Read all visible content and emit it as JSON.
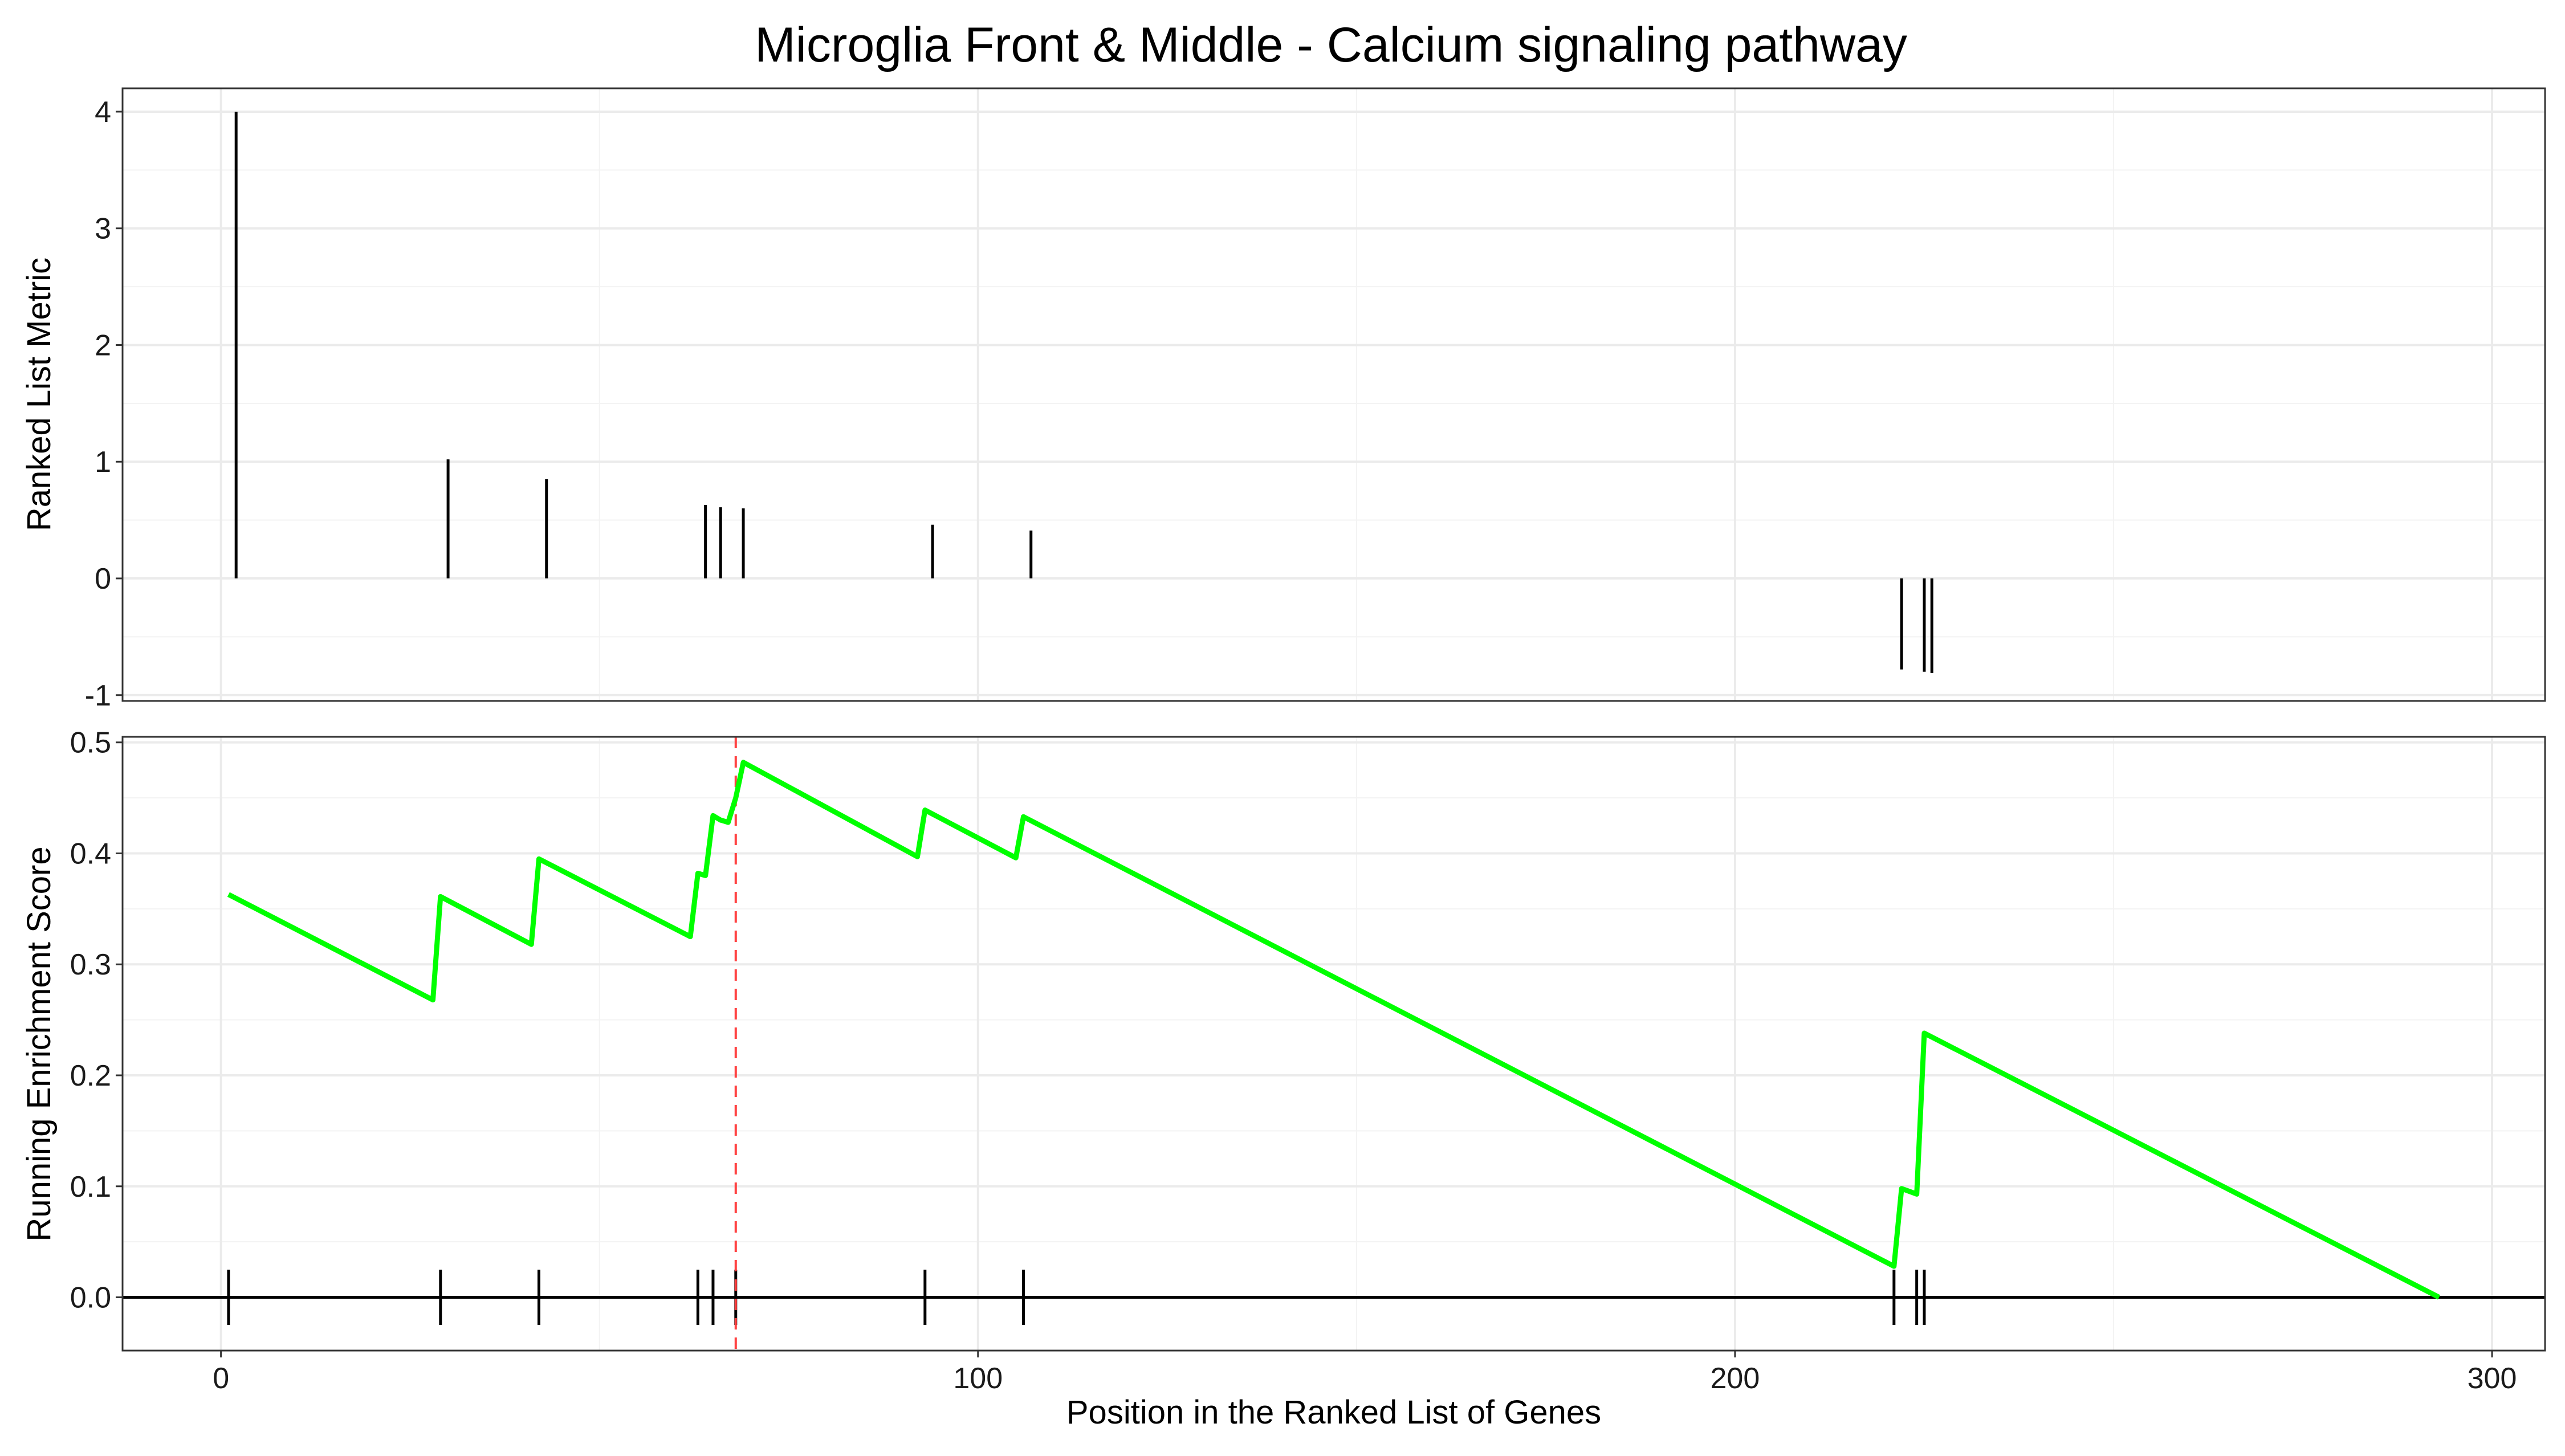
{
  "title": "Microglia Front & Middle - Calcium signaling pathway",
  "colors": {
    "running_score": "#00ff00",
    "peak_marker": "#ff4040",
    "bars": "#000000",
    "grid": "#ebebeb",
    "border": "#333333"
  },
  "chart_data": [
    {
      "type": "bar",
      "panel": "top",
      "ylabel": "Ranked List Metric",
      "xlim": [
        -13,
        307
      ],
      "ylim": [
        -1.05,
        4.2
      ],
      "yticks": [
        -1,
        0,
        1,
        2,
        3,
        4
      ],
      "ytick_labels": [
        "-1",
        "0",
        "1",
        "2",
        "3",
        "4"
      ],
      "x_minor_breaks": [
        50,
        150,
        250
      ],
      "y_minor_breaks": [
        -0.5,
        0.5,
        1.5,
        2.5,
        3.5
      ],
      "x": [
        2,
        30,
        43,
        64,
        66,
        69,
        94,
        107,
        222,
        225,
        226
      ],
      "values": [
        4.0,
        1.02,
        0.85,
        0.63,
        0.61,
        0.6,
        0.46,
        0.41,
        -0.78,
        -0.8,
        -0.81
      ],
      "grid": true
    },
    {
      "type": "line",
      "panel": "bottom",
      "xlabel": "Position in the Ranked List of Genes",
      "ylabel": "Running Enrichment Score",
      "xlim": [
        -13,
        307
      ],
      "ylim": [
        -0.048,
        0.505
      ],
      "xticks": [
        0,
        100,
        200,
        300
      ],
      "xtick_labels": [
        "0",
        "100",
        "200",
        "300"
      ],
      "yticks": [
        0.0,
        0.1,
        0.2,
        0.3,
        0.4,
        0.5
      ],
      "ytick_labels": [
        "0.0",
        "0.1",
        "0.2",
        "0.3",
        "0.4",
        "0.5"
      ],
      "x_minor_breaks": [
        50,
        150,
        250
      ],
      "y_minor_breaks": [
        0.05,
        0.15,
        0.25,
        0.35,
        0.45
      ],
      "running_score": {
        "x": [
          1,
          28,
          29,
          41,
          42,
          62,
          63,
          64,
          65,
          66,
          67,
          68,
          69,
          92,
          93,
          105,
          106,
          221,
          222,
          224,
          225,
          293
        ],
        "y": [
          0.363,
          0.268,
          0.361,
          0.318,
          0.395,
          0.325,
          0.382,
          0.38,
          0.434,
          0.43,
          0.428,
          0.45,
          0.482,
          0.397,
          0.439,
          0.396,
          0.433,
          0.028,
          0.098,
          0.093,
          0.238,
          0.0
        ]
      },
      "hits_x": [
        1,
        29,
        42,
        63,
        65,
        68,
        93,
        106,
        221,
        224,
        225
      ],
      "peak_x": 68,
      "grid": true
    }
  ]
}
